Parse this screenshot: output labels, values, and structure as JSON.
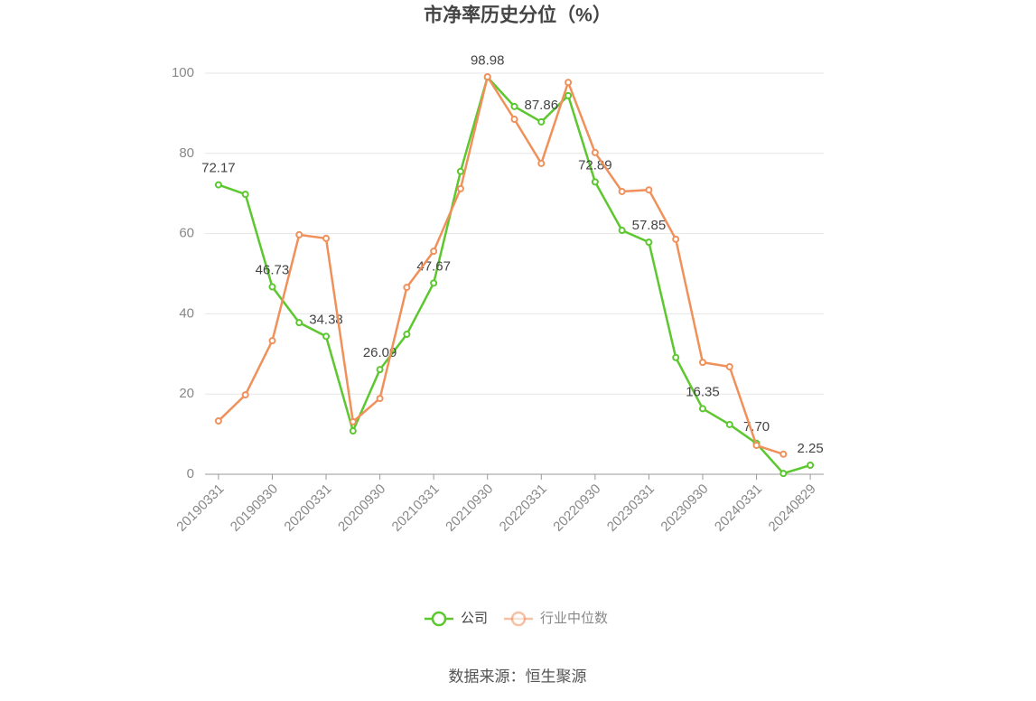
{
  "chart_data": {
    "type": "line",
    "title": "市净率历史分位（%）",
    "categories": [
      "20190331",
      null,
      "20190930",
      null,
      "20200331",
      null,
      "20200930",
      null,
      "20210331",
      null,
      "20210930",
      null,
      "20220331",
      null,
      "20220930",
      null,
      "20230331",
      null,
      "20230930",
      null,
      "20240331",
      null,
      "20240829"
    ],
    "series": [
      {
        "name": "公司",
        "color": "#5cc72e",
        "values": [
          72.17,
          69.8,
          46.73,
          37.8,
          34.38,
          10.8,
          26.09,
          34.9,
          47.67,
          75.5,
          98.98,
          91.7,
          87.86,
          94.4,
          72.89,
          60.8,
          57.85,
          29.1,
          16.35,
          12.4,
          7.7,
          0.2,
          2.25
        ],
        "value_labels": [
          "72.17",
          null,
          "46.73",
          null,
          "34.38",
          null,
          "26.09",
          null,
          "47.67",
          null,
          "98.98",
          null,
          "87.86",
          null,
          "72.89",
          null,
          "57.85",
          null,
          "16.35",
          null,
          "7.70",
          null,
          "2.25"
        ]
      },
      {
        "name": "行业中位数",
        "color": "#f0905a",
        "values": [
          13.3,
          19.8,
          33.3,
          59.7,
          58.8,
          13.1,
          18.9,
          46.6,
          55.6,
          71.2,
          99.1,
          88.5,
          77.5,
          97.7,
          80.2,
          70.5,
          70.9,
          58.6,
          27.9,
          26.8,
          7.2,
          5.0,
          null
        ]
      }
    ],
    "ylim": [
      0,
      100
    ],
    "yticks": [
      0,
      20,
      40,
      60,
      80,
      100
    ],
    "grid": true,
    "source": "数据来源：恒生聚源"
  }
}
